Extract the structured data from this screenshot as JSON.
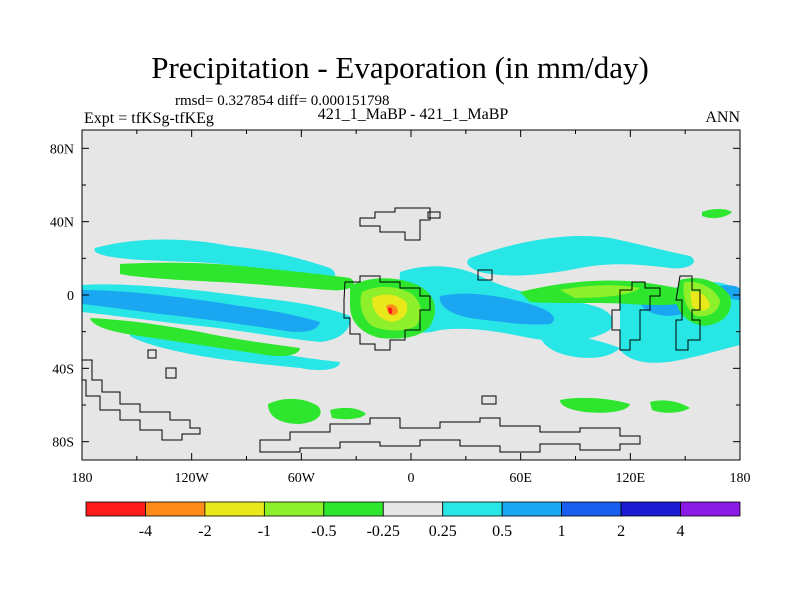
{
  "title": "Precipitation - Evaporation (in mm/day)",
  "stats": "rmsd= 0.327854  diff= 0.000151798",
  "expt": "Expt = tfKSg-tfKEg",
  "subtitle": "421_1_MaBP - 421_1_MaBP",
  "season": "ANN",
  "lat_ticks": [
    "80N",
    "40N",
    "0",
    "40S",
    "80S"
  ],
  "lon_ticks": [
    "180",
    "120W",
    "60W",
    "0",
    "60E",
    "120E",
    "180"
  ],
  "colorbar": {
    "labels": [
      "-4",
      "-2",
      "-1",
      "-0.5",
      "-0.25",
      "0.25",
      "0.5",
      "1",
      "2",
      "4"
    ],
    "colors": [
      "#ff1a1a",
      "#ff8c1a",
      "#e8e81a",
      "#8ef02a",
      "#2ee62e",
      "#e6e6e6",
      "#28e6e6",
      "#1aa6f0",
      "#1a5ef0",
      "#1a1ad2",
      "#8c1ae6"
    ]
  },
  "colors": {
    "ocean_bg": "#e6e6e6",
    "coast": "#000000"
  }
}
